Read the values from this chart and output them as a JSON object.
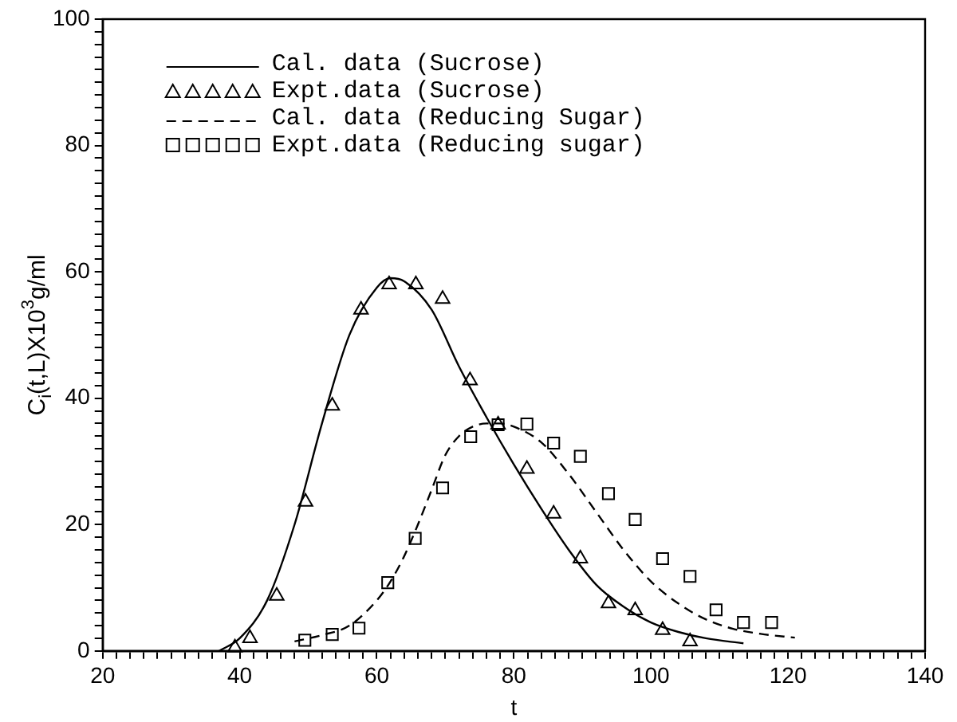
{
  "chart_data": {
    "type": "line",
    "xlabel": "t",
    "ylabel": "C$_{i}$(t,L)X10$^{3}$g/ml",
    "xlim": [
      20,
      140
    ],
    "ylim": [
      0,
      100
    ],
    "xticks": [
      20,
      {
        "value": 22,
        "label": null
      },
      {
        "value": 24,
        "label": null
      },
      {
        "value": 26,
        "label": null
      },
      {
        "value": 28,
        "label": null
      },
      {
        "value": 30,
        "label": null
      },
      {
        "value": 32,
        "label": null
      },
      {
        "value": 34,
        "label": null
      },
      {
        "value": 36,
        "label": null
      },
      {
        "value": 38,
        "label": null
      },
      40,
      {
        "value": 42,
        "label": null
      },
      {
        "value": 44,
        "label": null
      },
      {
        "value": 46,
        "label": null
      },
      {
        "value": 48,
        "label": null
      },
      {
        "value": 50,
        "label": null
      },
      {
        "value": 52,
        "label": null
      },
      {
        "value": 54,
        "label": null
      },
      {
        "value": 56,
        "label": null
      },
      {
        "value": 58,
        "label": null
      },
      60,
      {
        "value": 62,
        "label": null
      },
      {
        "value": 64,
        "label": null
      },
      {
        "value": 66,
        "label": null
      },
      {
        "value": 68,
        "label": null
      },
      {
        "value": 70,
        "label": null
      },
      {
        "value": 72,
        "label": null
      },
      {
        "value": 74,
        "label": null
      },
      {
        "value": 76,
        "label": null
      },
      {
        "value": 78,
        "label": null
      },
      80,
      {
        "value": 82,
        "label": null
      },
      {
        "value": 84,
        "label": null
      },
      {
        "value": 86,
        "label": null
      },
      {
        "value": 88,
        "label": null
      },
      {
        "value": 90,
        "label": null
      },
      {
        "value": 92,
        "label": null
      },
      {
        "value": 94,
        "label": null
      },
      {
        "value": 96,
        "label": null
      },
      {
        "value": 98,
        "label": null
      },
      100,
      {
        "value": 102,
        "label": null
      },
      {
        "value": 104,
        "label": null
      },
      {
        "value": 106,
        "label": null
      },
      {
        "value": 108,
        "label": null
      },
      {
        "value": 110,
        "label": null
      },
      {
        "value": 112,
        "label": null
      },
      {
        "value": 114,
        "label": null
      },
      {
        "value": 116,
        "label": null
      },
      {
        "value": 118,
        "label": null
      },
      120,
      {
        "value": 122,
        "label": null
      },
      {
        "value": 124,
        "label": null
      },
      {
        "value": 126,
        "label": null
      },
      {
        "value": 128,
        "label": null
      },
      {
        "value": 130,
        "label": null
      },
      {
        "value": 132,
        "label": null
      },
      {
        "value": 134,
        "label": null
      },
      {
        "value": 136,
        "label": null
      },
      {
        "value": 138,
        "label": null
      },
      140
    ],
    "yticks": [
      0,
      {
        "value": 2,
        "label": null
      },
      {
        "value": 4,
        "label": null
      },
      {
        "value": 6,
        "label": null
      },
      {
        "value": 8,
        "label": null
      },
      {
        "value": 10,
        "label": null
      },
      {
        "value": 12,
        "label": null
      },
      {
        "value": 14,
        "label": null
      },
      {
        "value": 16,
        "label": null
      },
      {
        "value": 18,
        "label": null
      },
      20,
      {
        "value": 22,
        "label": null
      },
      {
        "value": 24,
        "label": null
      },
      {
        "value": 26,
        "label": null
      },
      {
        "value": 28,
        "label": null
      },
      {
        "value": 30,
        "label": null
      },
      {
        "value": 32,
        "label": null
      },
      {
        "value": 34,
        "label": null
      },
      {
        "value": 36,
        "label": null
      },
      {
        "value": 38,
        "label": null
      },
      40,
      {
        "value": 42,
        "label": null
      },
      {
        "value": 44,
        "label": null
      },
      {
        "value": 46,
        "label": null
      },
      {
        "value": 48,
        "label": null
      },
      {
        "value": 50,
        "label": null
      },
      {
        "value": 52,
        "label": null
      },
      {
        "value": 54,
        "label": null
      },
      {
        "value": 56,
        "label": null
      },
      {
        "value": 58,
        "label": null
      },
      60,
      {
        "value": 62,
        "label": null
      },
      {
        "value": 64,
        "label": null
      },
      {
        "value": 66,
        "label": null
      },
      {
        "value": 68,
        "label": null
      },
      {
        "value": 70,
        "label": null
      },
      {
        "value": 72,
        "label": null
      },
      {
        "value": 74,
        "label": null
      },
      {
        "value": 76,
        "label": null
      },
      {
        "value": 78,
        "label": null
      },
      80,
      {
        "value": 82,
        "label": null
      },
      {
        "value": 84,
        "label": null
      },
      {
        "value": 86,
        "label": null
      },
      {
        "value": 88,
        "label": null
      },
      {
        "value": 90,
        "label": null
      },
      {
        "value": 92,
        "label": null
      },
      {
        "value": 94,
        "label": null
      },
      {
        "value": 96,
        "label": null
      },
      {
        "value": 98,
        "label": null
      },
      100
    ],
    "grid": false,
    "legend": "top left",
    "series": [
      {
        "name": "Cal. data (Sucrose)",
        "type": "line",
        "color": "#000000",
        "marker": "none",
        "line_style": "solid",
        "x": [
          37,
          40,
          44,
          48,
          52,
          56,
          60,
          62,
          64,
          68,
          72,
          76,
          80,
          84,
          88,
          92,
          96,
          100,
          104,
          108,
          113.5
        ],
        "values": [
          0,
          2,
          8,
          20,
          36,
          50,
          57.5,
          59,
          58.5,
          54,
          45,
          37,
          29.5,
          22.5,
          16,
          10.5,
          7,
          4.5,
          3,
          2,
          1.2
        ]
      },
      {
        "name": "Expt.data (Sucrose)",
        "type": "scatter",
        "color": "#000000",
        "marker": "triangle",
        "x": [
          39.3,
          41.5,
          45.4,
          49.6,
          53.5,
          57.7,
          61.8,
          65.7,
          69.6,
          73.6,
          77.7,
          81.9,
          85.8,
          89.7,
          93.8,
          97.7,
          101.7,
          105.7
        ],
        "values": [
          0.5,
          2,
          8.7,
          23.6,
          38.8,
          54,
          58,
          58,
          55.7,
          42.8,
          35.8,
          28.8,
          21.7,
          14.6,
          7.5,
          6.4,
          3.3,
          1.5
        ]
      },
      {
        "name": "Cal. data (Reducing Sugar)",
        "type": "line",
        "color": "#000000",
        "marker": "none",
        "line_style": "dashed",
        "x": [
          48,
          52,
          56,
          60,
          62,
          64,
          66,
          68,
          70,
          72,
          74,
          76,
          78,
          80,
          84,
          88,
          92,
          96,
          100,
          104,
          108,
          112,
          116,
          121
        ],
        "values": [
          1.5,
          2.5,
          4,
          8,
          11,
          15,
          20,
          25.5,
          31,
          34,
          35.5,
          36,
          36,
          35.5,
          33,
          28,
          22,
          16,
          11,
          7.5,
          5,
          3.5,
          2.7,
          2.1
        ]
      },
      {
        "name": "Expt.data (Reducing sugar)",
        "type": "scatter",
        "color": "#000000",
        "marker": "square",
        "x": [
          49.5,
          53.5,
          57.4,
          61.6,
          65.6,
          69.6,
          73.7,
          77.7,
          81.9,
          85.8,
          89.7,
          93.8,
          97.7,
          101.7,
          105.7,
          109.5,
          113.5,
          117.6
        ],
        "values": [
          1.7,
          2.6,
          3.6,
          10.8,
          17.8,
          25.8,
          33.9,
          35.8,
          35.9,
          32.9,
          30.8,
          24.9,
          20.8,
          14.6,
          11.8,
          6.5,
          4.5,
          4.5
        ]
      }
    ]
  }
}
